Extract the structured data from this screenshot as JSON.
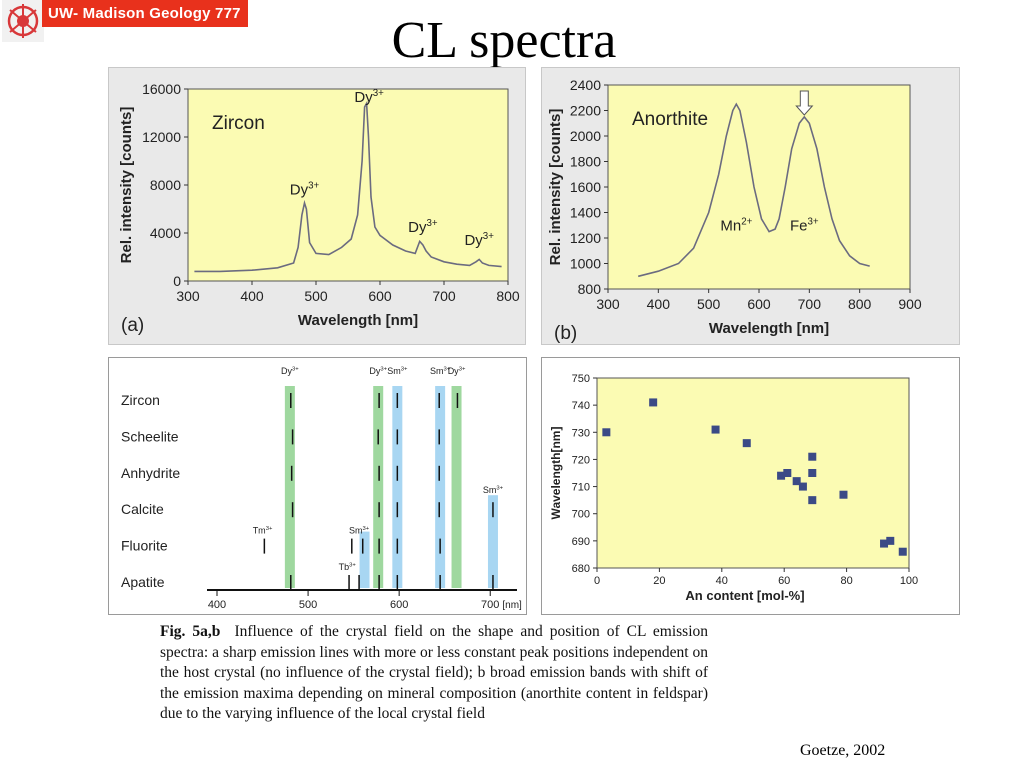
{
  "header": {
    "banner_text": "UW- Madison Geology  777",
    "title": "CL spectra"
  },
  "caption": {
    "label": "Fig. 5a,b",
    "body": "Influence of the crystal field on the shape and position of CL emission spectra: a sharp emission lines with more or less constant peak positions independent on the host crystal (no influence of the crystal field); b broad emission bands with shift of the emission maxima depending on mineral composition (anorthite content in feldspar) due to the varying influence of the local crystal field"
  },
  "credit": "Goetze, 2002",
  "colors": {
    "plot_bg": "#fbfbb3",
    "panel_bg": "#e9e9e9",
    "green_band": "#9fd89f",
    "blue_band": "#a8d6f2",
    "marker": "#3b4a86",
    "banner": "#e8311c"
  },
  "chart_data": [
    {
      "type": "line",
      "panel_label": "(a)",
      "title": "Zircon",
      "xlabel": "Wavelength [nm]",
      "ylabel": "Rel. intensity [counts]",
      "xlim": [
        300,
        800
      ],
      "ylim": [
        0,
        16000
      ],
      "xticks": [
        300,
        400,
        500,
        600,
        700,
        800
      ],
      "yticks": [
        0,
        4000,
        8000,
        12000,
        16000
      ],
      "series": [
        {
          "x": [
            310,
            350,
            400,
            440,
            465,
            472,
            478,
            482,
            485,
            490,
            500,
            520,
            540,
            555,
            565,
            572,
            576,
            579,
            582,
            586,
            592,
            600,
            620,
            640,
            655,
            662,
            667,
            672,
            680,
            700,
            720,
            740,
            750,
            755,
            760,
            770,
            790
          ],
          "y": [
            800,
            800,
            900,
            1100,
            1500,
            2800,
            5500,
            6500,
            6000,
            3200,
            2300,
            2200,
            2800,
            3500,
            5500,
            10000,
            14500,
            14800,
            12000,
            7000,
            4500,
            3800,
            3000,
            2500,
            2300,
            3300,
            3000,
            2500,
            2000,
            1600,
            1400,
            1300,
            1600,
            1800,
            1500,
            1300,
            1200
          ]
        }
      ],
      "annotations": [
        {
          "text": "Dy",
          "sup": "3+",
          "x": 583,
          "y": 14900
        },
        {
          "text": "Dy",
          "sup": "3+",
          "x": 482,
          "y": 7200
        },
        {
          "text": "Dy",
          "sup": "3+",
          "x": 667,
          "y": 4100
        },
        {
          "text": "Dy",
          "sup": "3+",
          "x": 755,
          "y": 3000
        }
      ]
    },
    {
      "type": "line",
      "panel_label": "(b)",
      "title": "Anorthite",
      "xlabel": "Wavelength [nm]",
      "ylabel": "Rel. intensity [counts]",
      "xlim": [
        300,
        900
      ],
      "ylim": [
        800,
        2400
      ],
      "xticks": [
        300,
        400,
        500,
        600,
        700,
        800,
        900
      ],
      "yticks": [
        800,
        1000,
        1200,
        1400,
        1600,
        1800,
        2000,
        2200,
        2400
      ],
      "series": [
        {
          "x": [
            360,
            400,
            440,
            470,
            500,
            520,
            535,
            548,
            555,
            562,
            575,
            590,
            605,
            620,
            632,
            640,
            652,
            665,
            680,
            690,
            700,
            715,
            730,
            745,
            760,
            780,
            800,
            820
          ],
          "y": [
            900,
            940,
            1000,
            1120,
            1400,
            1700,
            2000,
            2200,
            2250,
            2200,
            1950,
            1600,
            1350,
            1250,
            1270,
            1350,
            1600,
            1900,
            2100,
            2150,
            2100,
            1900,
            1600,
            1350,
            1180,
            1060,
            1000,
            980
          ]
        }
      ],
      "annotations": [
        {
          "text": "Mn",
          "sup": "2+",
          "x": 555,
          "y": 1260
        },
        {
          "text": "Fe",
          "sup": "3+",
          "x": 690,
          "y": 1260
        }
      ]
    },
    {
      "type": "table",
      "title": "",
      "xlabel": "[nm]",
      "xlim": [
        400,
        725
      ],
      "xticks": [
        400,
        500,
        600,
        700
      ],
      "minerals": [
        "Zircon",
        "Scheelite",
        "Anhydrite",
        "Calcite",
        "Fluorite",
        "Apatite"
      ],
      "bands": [
        {
          "center": 480,
          "color": "green",
          "label": "Dy",
          "sup": "3+",
          "rows": "all"
        },
        {
          "center": 577,
          "color": "green",
          "label": "Dy",
          "sup": "3+",
          "rows": "all"
        },
        {
          "center": 598,
          "color": "blue",
          "label": "Sm",
          "sup": "3+",
          "rows": "all"
        },
        {
          "center": 645,
          "color": "blue",
          "label": "Sm",
          "sup": "3+",
          "rows": "all"
        },
        {
          "center": 663,
          "color": "green",
          "label": "Dy",
          "sup": "3+",
          "rows": "all"
        },
        {
          "center": 703,
          "color": "blue",
          "label": "Sm",
          "sup": "3+",
          "rows": [
            3,
            4,
            5
          ]
        },
        {
          "center": 562,
          "color": "blue",
          "label": "",
          "sup": "",
          "rows": [
            4,
            5
          ]
        }
      ],
      "lines": [
        {
          "row": 0,
          "x": [
            481,
            578,
            598,
            644,
            664
          ]
        },
        {
          "row": 1,
          "x": [
            483,
            577,
            598,
            644
          ]
        },
        {
          "row": 2,
          "x": [
            482,
            578,
            598,
            644
          ]
        },
        {
          "row": 3,
          "x": [
            483,
            578,
            598,
            644,
            703
          ]
        },
        {
          "row": 4,
          "x": [
            452,
            548,
            560,
            578,
            598,
            645
          ]
        },
        {
          "row": 5,
          "x": [
            481,
            545,
            556,
            578,
            598,
            645,
            703
          ]
        }
      ],
      "side_labels": [
        {
          "text": "Sm",
          "sup": "3+",
          "x": 703,
          "row": 3
        },
        {
          "text": "Tm",
          "sup": "3+",
          "x": 450,
          "row": 4
        },
        {
          "text": "Sm",
          "sup": "3+",
          "x": 556,
          "row": 4
        },
        {
          "text": "Tb",
          "sup": "3+",
          "x": 543,
          "row": 5
        }
      ]
    },
    {
      "type": "scatter",
      "title": "",
      "xlabel": "An  content  [mol-%]",
      "ylabel": "Wavelength[nm]",
      "xlim": [
        0,
        100
      ],
      "ylim": [
        680,
        750
      ],
      "xticks": [
        0,
        20,
        40,
        60,
        80,
        100
      ],
      "yticks": [
        680,
        690,
        700,
        710,
        720,
        730,
        740,
        750
      ],
      "series": [
        {
          "x": [
            3,
            18,
            38,
            48,
            59,
            61,
            64,
            66,
            69,
            69,
            69,
            79,
            92,
            94,
            98
          ],
          "y": [
            730,
            741,
            731,
            726,
            714,
            715,
            712,
            710,
            721,
            715,
            705,
            707,
            689,
            690,
            686
          ]
        }
      ]
    }
  ]
}
